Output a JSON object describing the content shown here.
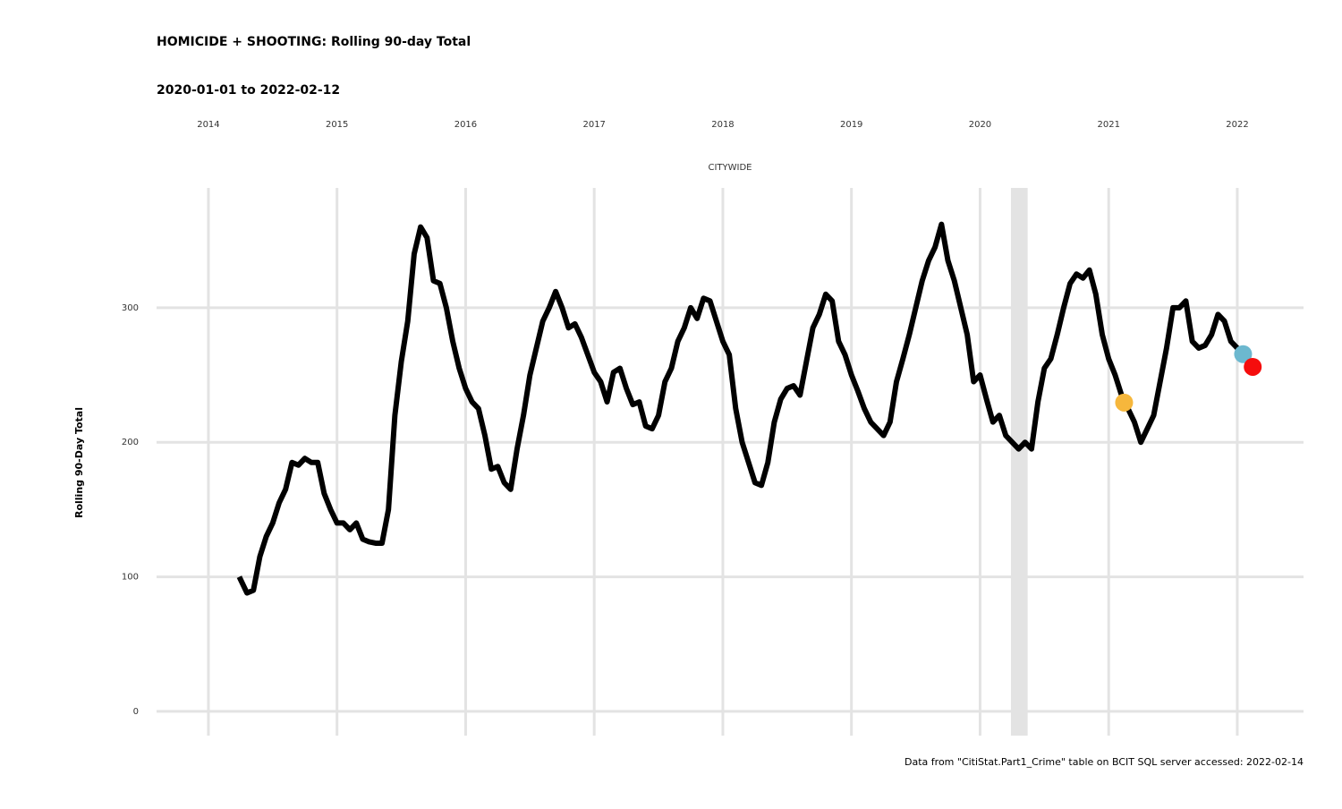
{
  "chart_data": {
    "type": "line",
    "title": "HOMICIDE + SHOOTING: Rolling 90-day Total",
    "subtitle": "2020-01-01 to 2022-02-12",
    "facet_label": "CITYWIDE",
    "y_label": "Rolling 90-Day Total",
    "caption": "Data from \"CitiStat.Part1_Crime\" table on BCIT SQL server accessed: 2022-02-14",
    "xlim": [
      2013.597,
      2022.515
    ],
    "xticks": [
      2014,
      2015,
      2016,
      2017,
      2018,
      2019,
      2020,
      2021,
      2022
    ],
    "ylim": [
      -18,
      389
    ],
    "yticks": [
      0,
      100,
      200,
      300
    ],
    "grid": true,
    "shaded_region": [
      2020.24,
      2020.37
    ],
    "shaded_color": "#e3e3e3",
    "x": [
      2014.24,
      2014.3,
      2014.35,
      2014.4,
      2014.45,
      2014.5,
      2014.55,
      2014.6,
      2014.65,
      2014.7,
      2014.75,
      2014.8,
      2014.85,
      2014.9,
      2014.95,
      2015.0,
      2015.05,
      2015.1,
      2015.15,
      2015.2,
      2015.25,
      2015.3,
      2015.35,
      2015.4,
      2015.45,
      2015.5,
      2015.55,
      2015.6,
      2015.65,
      2015.7,
      2015.75,
      2015.8,
      2015.85,
      2015.9,
      2015.95,
      2016.0,
      2016.05,
      2016.1,
      2016.15,
      2016.2,
      2016.25,
      2016.3,
      2016.35,
      2016.4,
      2016.45,
      2016.5,
      2016.55,
      2016.6,
      2016.65,
      2016.7,
      2016.75,
      2016.8,
      2016.85,
      2016.9,
      2016.95,
      2017.0,
      2017.05,
      2017.1,
      2017.15,
      2017.2,
      2017.25,
      2017.3,
      2017.35,
      2017.4,
      2017.45,
      2017.5,
      2017.55,
      2017.6,
      2017.65,
      2017.7,
      2017.75,
      2017.8,
      2017.85,
      2017.9,
      2017.95,
      2018.0,
      2018.05,
      2018.1,
      2018.15,
      2018.2,
      2018.25,
      2018.3,
      2018.35,
      2018.4,
      2018.45,
      2018.5,
      2018.55,
      2018.6,
      2018.65,
      2018.7,
      2018.75,
      2018.8,
      2018.85,
      2018.9,
      2018.95,
      2019.0,
      2019.05,
      2019.1,
      2019.15,
      2019.2,
      2019.25,
      2019.3,
      2019.35,
      2019.4,
      2019.45,
      2019.5,
      2019.55,
      2019.6,
      2019.65,
      2019.7,
      2019.75,
      2019.8,
      2019.85,
      2019.9,
      2019.95,
      2020.0,
      2020.05,
      2020.1,
      2020.15,
      2020.2,
      2020.25,
      2020.3,
      2020.35,
      2020.4,
      2020.45,
      2020.5,
      2020.55,
      2020.6,
      2020.65,
      2020.7,
      2020.75,
      2020.8,
      2020.85,
      2020.9,
      2020.95,
      2021.0,
      2021.05,
      2021.1,
      2021.15,
      2021.2,
      2021.25,
      2021.3,
      2021.35,
      2021.4,
      2021.45,
      2021.5,
      2021.55,
      2021.6,
      2021.65,
      2021.7,
      2021.75,
      2021.8,
      2021.85,
      2021.9,
      2021.95,
      2022.0,
      2022.05,
      2022.1
    ],
    "series": [
      {
        "color": "#000000",
        "values": [
          100,
          88,
          90,
          115,
          130,
          140,
          155,
          165,
          185,
          183,
          188,
          185,
          185,
          162,
          150,
          140,
          140,
          135,
          140,
          128,
          126,
          125,
          125,
          150,
          220,
          260,
          290,
          340,
          360,
          352,
          320,
          318,
          300,
          275,
          255,
          240,
          230,
          225,
          205,
          180,
          182,
          170,
          165,
          195,
          220,
          250,
          270,
          290,
          300,
          312,
          300,
          285,
          288,
          278,
          265,
          252,
          245,
          230,
          252,
          255,
          240,
          228,
          230,
          212,
          210,
          220,
          245,
          255,
          275,
          285,
          300,
          292,
          307,
          305,
          290,
          275,
          265,
          225,
          200,
          185,
          170,
          168,
          185,
          215,
          232,
          240,
          242,
          235,
          260,
          285,
          295,
          310,
          305,
          275,
          265,
          250,
          238,
          225,
          215,
          210,
          205,
          215,
          245,
          262,
          280,
          300,
          320,
          335,
          345,
          362,
          335,
          320,
          300,
          280,
          245,
          250,
          232,
          215,
          220,
          205,
          200,
          195,
          200,
          195,
          230,
          255,
          262,
          280,
          300,
          318,
          325,
          322,
          328,
          310,
          280,
          262,
          250,
          235,
          225,
          215,
          200,
          210,
          220,
          245,
          270,
          300,
          300,
          305,
          275,
          270,
          272,
          280,
          295,
          290,
          275,
          270,
          262,
          265
        ]
      }
    ],
    "highlights": [
      {
        "color": "#f6b73c",
        "x": 2021.12,
        "y": 229.5
      },
      {
        "color": "#6cb8cf",
        "x": 2022.045,
        "y": 265.5
      },
      {
        "color": "#f50d0d",
        "x": 2022.12,
        "y": 256
      }
    ]
  }
}
